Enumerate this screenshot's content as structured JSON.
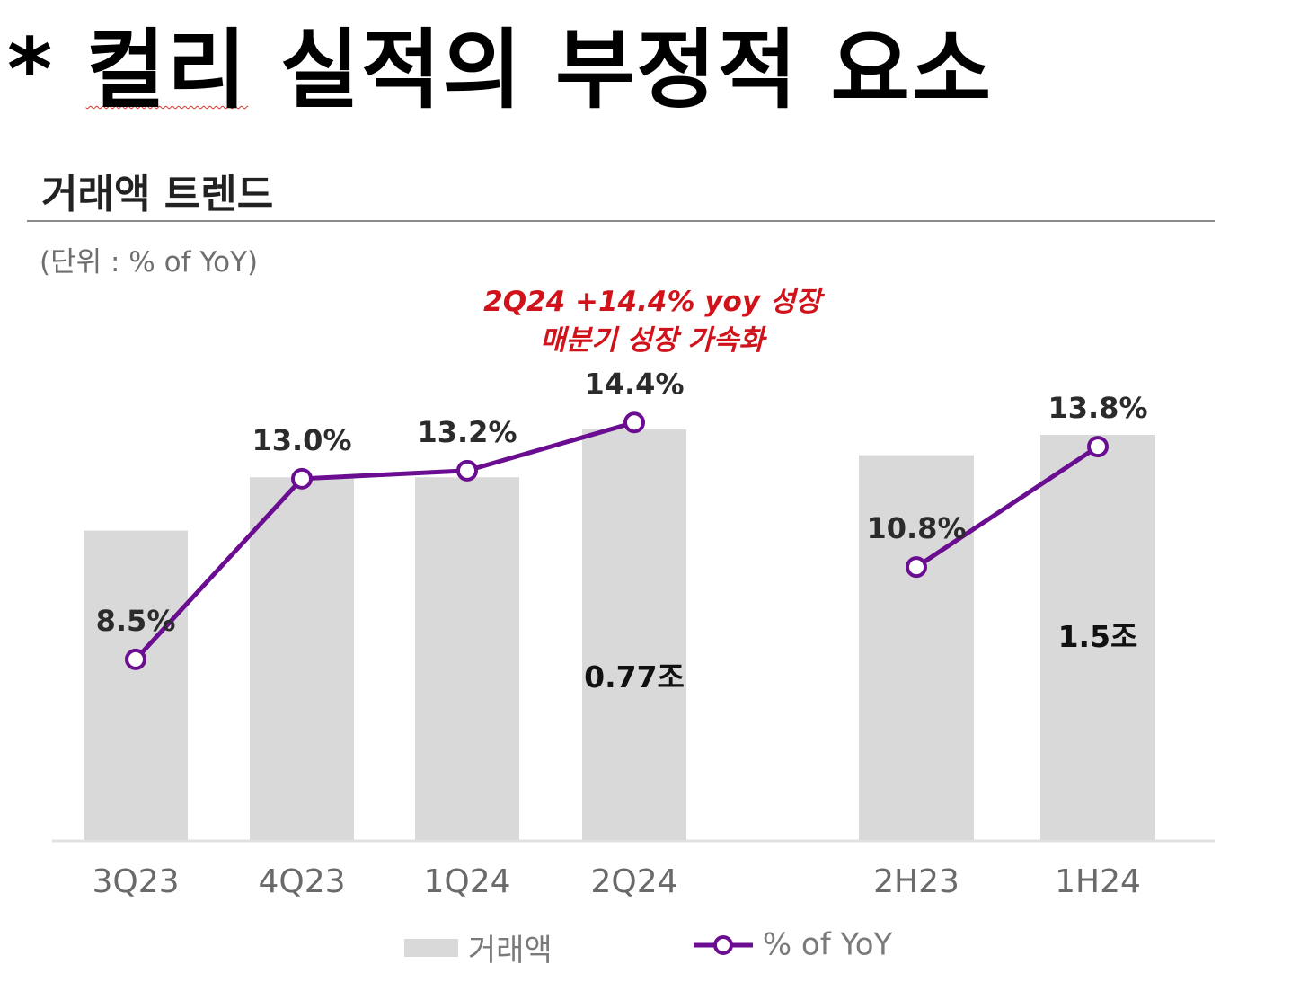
{
  "page_title": {
    "prefix": "* ",
    "highlighted": "컬리",
    "rest": " 실적의 부정적 요소"
  },
  "chart_data": {
    "type": "bar+line",
    "title": "거래액 트렌드",
    "unit_label": "(단위 : % of YoY)",
    "annotation": [
      "2Q24 +14.4% yoy 성장",
      "매분기 성장 가속화"
    ],
    "categories": [
      "3Q23",
      "4Q23",
      "1Q24",
      "2Q24",
      "2H23",
      "1H24"
    ],
    "series": [
      {
        "name": "거래액",
        "type": "bar",
        "groups": [
          {
            "categories": [
              "3Q23",
              "4Q23",
              "1Q24",
              "2Q24"
            ],
            "values": [
              0.58,
              0.68,
              0.68,
              0.77
            ],
            "ylim": [
              0,
              0.8
            ]
          },
          {
            "categories": [
              "2H23",
              "1H24"
            ],
            "values": [
              1.425,
              1.5
            ],
            "ylim": [
              0,
              1.58
            ]
          }
        ],
        "labels": [
          "",
          "",
          "",
          "0.77조",
          "",
          "1.5조"
        ]
      },
      {
        "name": "% of YoY",
        "type": "line",
        "groups": [
          {
            "categories": [
              "3Q23",
              "4Q23",
              "1Q24",
              "2Q24"
            ],
            "values": [
              8.5,
              13.0,
              13.2,
              14.4
            ]
          },
          {
            "categories": [
              "2H23",
              "1H24"
            ],
            "values": [
              10.8,
              13.8
            ]
          }
        ],
        "labels": [
          "8.5%",
          "13.0%",
          "13.2%",
          "14.4%",
          "10.8%",
          "13.8%"
        ],
        "ylim": [
          4,
          20
        ]
      }
    ],
    "legend": [
      "거래액",
      "% of YoY"
    ],
    "legend_position": "bottom",
    "grid": false
  },
  "colors": {
    "bar": "#d9d9d9",
    "line": "#6a0d91",
    "annotation": "#d0121b",
    "axis_text": "#6a6a6a"
  }
}
